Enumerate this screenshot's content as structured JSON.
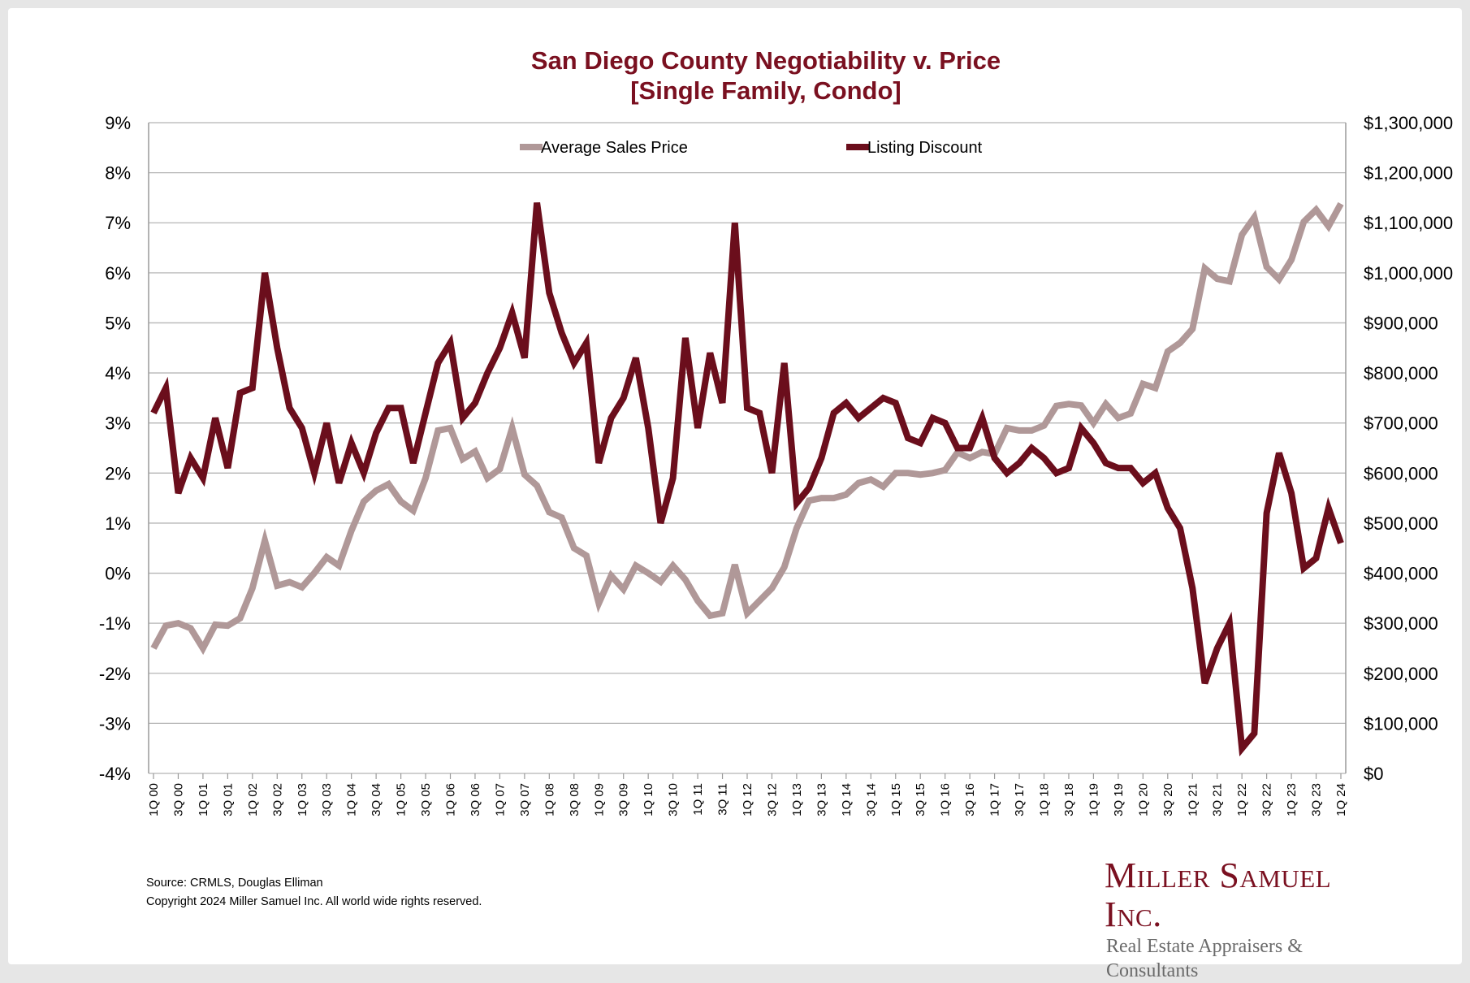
{
  "title": {
    "line1": "San Diego County Negotiability v. Price",
    "line2": "[Single Family, Condo]"
  },
  "colors": {
    "price": "#b09898",
    "discount": "#6b0e1c",
    "title": "#7a1020",
    "grid": "#b5b5b5"
  },
  "source": {
    "line1": "Source: CRMLS, Douglas Elliman",
    "line2": "Copyright 2024 Miller Samuel Inc.  All world wide rights reserved."
  },
  "logo": {
    "name": "Miller Samuel Inc.",
    "tagline": "Real Estate Appraisers & Consultants"
  },
  "chart_data": {
    "type": "line",
    "title": "San Diego County Negotiability v. Price [Single Family, Condo]",
    "legend_position": "top-center",
    "grid": true,
    "x_tick_labels": [
      "1Q 00",
      "3Q 00",
      "1Q 01",
      "3Q 01",
      "1Q 02",
      "3Q 02",
      "1Q 03",
      "3Q 03",
      "1Q 04",
      "3Q 04",
      "1Q 05",
      "3Q 05",
      "1Q 06",
      "3Q 06",
      "1Q 07",
      "3Q 07",
      "1Q 08",
      "3Q 08",
      "1Q 09",
      "3Q 09",
      "1Q 10",
      "3Q 10",
      "1Q 11",
      "3Q 11",
      "1Q 12",
      "3Q 12",
      "1Q 13",
      "3Q 13",
      "1Q 14",
      "3Q 14",
      "1Q 15",
      "3Q 15",
      "1Q 16",
      "3Q 16",
      "1Q 17",
      "3Q 17",
      "1Q 18",
      "3Q 18",
      "1Q 19",
      "3Q 19",
      "1Q 20",
      "3Q 20",
      "1Q 21",
      "3Q 21",
      "1Q 22",
      "3Q 22",
      "1Q 23",
      "3Q 23",
      "1Q 24"
    ],
    "left_axis": {
      "range": [
        -4,
        9
      ],
      "ticks": [
        "-4%",
        "-3%",
        "-2%",
        "-1%",
        "0%",
        "1%",
        "2%",
        "3%",
        "4%",
        "5%",
        "6%",
        "7%",
        "8%",
        "9%"
      ]
    },
    "right_axis": {
      "range": [
        0,
        1300000
      ],
      "ticks": [
        "$0",
        "$100,000",
        "$200,000",
        "$300,000",
        "$400,000",
        "$500,000",
        "$600,000",
        "$700,000",
        "$800,000",
        "$900,000",
        "$1,000,000",
        "$1,100,000",
        "$1,200,000",
        "$1,300,000"
      ]
    },
    "series": [
      {
        "name": "Average Sales Price",
        "axis": "right",
        "values": [
          250000,
          295000,
          300000,
          290000,
          250000,
          297000,
          295000,
          310000,
          370000,
          465000,
          375000,
          382000,
          372000,
          400000,
          432000,
          415000,
          485000,
          543000,
          565000,
          578000,
          543000,
          525000,
          590000,
          685000,
          690000,
          628000,
          643000,
          590000,
          608000,
          690000,
          597000,
          575000,
          522000,
          511000,
          450000,
          435000,
          340000,
          395000,
          368000,
          415000,
          400000,
          383000,
          415000,
          387000,
          345000,
          315000,
          320000,
          417000,
          320000,
          345000,
          370000,
          412000,
          490000,
          545000,
          550000,
          550000,
          557000,
          580000,
          587000,
          573000,
          600000,
          600000,
          597000,
          600000,
          606000,
          641000,
          630000,
          642000,
          638000,
          690000,
          685000,
          685000,
          695000,
          734000,
          738000,
          735000,
          700000,
          738000,
          710000,
          719000,
          778000,
          770000,
          843000,
          860000,
          888000,
          1009000,
          988000,
          983000,
          1076000,
          1111000,
          1012000,
          987000,
          1026000,
          1102000,
          1126000,
          1093000,
          1138000
        ]
      },
      {
        "name": "Listing Discount",
        "axis": "left",
        "values": [
          3.2,
          3.7,
          1.6,
          2.3,
          1.9,
          3.1,
          2.1,
          3.6,
          3.7,
          6.0,
          4.5,
          3.3,
          2.9,
          2.0,
          3.0,
          1.8,
          2.6,
          2.0,
          2.8,
          3.3,
          3.3,
          2.2,
          3.2,
          4.2,
          4.6,
          3.1,
          3.4,
          4.0,
          4.5,
          5.2,
          4.3,
          7.4,
          5.6,
          4.8,
          4.2,
          4.6,
          2.2,
          3.1,
          3.5,
          4.3,
          2.9,
          1.0,
          1.9,
          4.7,
          2.9,
          4.4,
          3.4,
          7.0,
          3.3,
          3.2,
          2.0,
          4.2,
          1.4,
          1.7,
          2.3,
          3.2,
          3.4,
          3.1,
          3.3,
          3.5,
          3.4,
          2.7,
          2.6,
          3.1,
          3.0,
          2.5,
          2.5,
          3.1,
          2.3,
          2.0,
          2.2,
          2.5,
          2.3,
          2.0,
          2.1,
          2.9,
          2.6,
          2.2,
          2.1,
          2.1,
          1.8,
          2.0,
          1.3,
          0.9,
          -0.3,
          -2.2,
          -1.5,
          -1.0,
          -3.5,
          -3.2,
          1.2,
          2.4,
          1.6,
          0.1,
          0.3,
          1.3,
          0.6
        ]
      }
    ]
  }
}
